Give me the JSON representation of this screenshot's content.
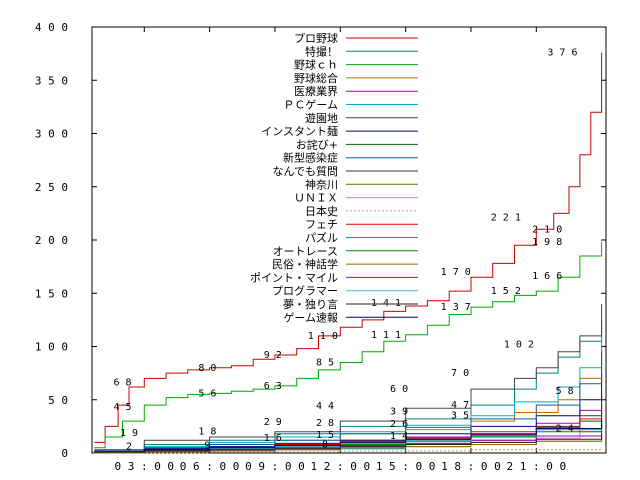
{
  "chart_data": {
    "type": "line",
    "title": "",
    "xlabel": "",
    "ylabel": "",
    "xlim": [
      0.6,
      24.2
    ],
    "ylim": [
      0,
      400
    ],
    "yticks": [
      0,
      50,
      100,
      150,
      200,
      250,
      300,
      350,
      400
    ],
    "ytick_labels": [
      "0",
      "5 0",
      "1 0 0",
      "1 5 0",
      "2 0 0",
      "2 5 0",
      "3 0 0",
      "3 5 0",
      "4 0 0"
    ],
    "xticks": [
      3,
      6,
      9,
      12,
      15,
      18,
      21
    ],
    "xtick_labels": [
      "0 3 : 0 0",
      "0 6 : 0 0",
      "0 9 : 0 0",
      "1 2 : 0 0",
      "1 5 : 0 0",
      "1 8 : 0 0",
      "2 1 : 0 0"
    ],
    "legend_position": "top-center",
    "series": [
      {
        "name": "プロ野球",
        "color": "#cc0000",
        "values": [
          [
            0.7,
            10
          ],
          [
            1.2,
            25
          ],
          [
            1.8,
            45
          ],
          [
            2.3,
            62
          ],
          [
            3,
            70
          ],
          [
            4,
            75
          ],
          [
            5,
            78
          ],
          [
            6,
            80
          ],
          [
            7,
            82
          ],
          [
            8,
            88
          ],
          [
            9,
            92
          ],
          [
            10,
            98
          ],
          [
            11,
            110
          ],
          [
            12,
            118
          ],
          [
            13,
            125
          ],
          [
            14,
            133
          ],
          [
            15,
            138
          ],
          [
            16,
            143
          ],
          [
            17,
            152
          ],
          [
            18,
            165
          ],
          [
            19,
            178
          ],
          [
            20,
            195
          ],
          [
            21,
            210
          ],
          [
            21.8,
            225
          ],
          [
            22.5,
            250
          ],
          [
            23,
            280
          ],
          [
            23.5,
            320
          ],
          [
            24,
            376
          ]
        ]
      },
      {
        "name": "特撮！",
        "color": "#008080",
        "values": [
          [
            0.7,
            2
          ],
          [
            3,
            8
          ],
          [
            6,
            12
          ],
          [
            9,
            18
          ],
          [
            12,
            25
          ],
          [
            15,
            32
          ],
          [
            18,
            45
          ],
          [
            20,
            60
          ],
          [
            21,
            75
          ],
          [
            22,
            90
          ],
          [
            23,
            105
          ],
          [
            24,
            125
          ]
        ]
      },
      {
        "name": "野球ｃｈ",
        "color": "#00aa00",
        "values": [
          [
            0.7,
            5
          ],
          [
            1.2,
            15
          ],
          [
            2,
            30
          ],
          [
            3,
            45
          ],
          [
            4,
            52
          ],
          [
            5,
            55
          ],
          [
            6,
            56
          ],
          [
            7,
            58
          ],
          [
            8,
            60
          ],
          [
            9,
            63
          ],
          [
            10,
            70
          ],
          [
            11,
            78
          ],
          [
            12,
            85
          ],
          [
            13,
            95
          ],
          [
            14,
            105
          ],
          [
            15,
            111
          ],
          [
            16,
            120
          ],
          [
            17,
            130
          ],
          [
            18,
            137
          ],
          [
            19,
            142
          ],
          [
            20,
            148
          ],
          [
            21,
            152
          ],
          [
            22,
            165
          ],
          [
            23,
            185
          ],
          [
            24,
            198
          ]
        ]
      },
      {
        "name": "野球総合",
        "color": "#cc6600",
        "values": [
          [
            0.7,
            1
          ],
          [
            3,
            5
          ],
          [
            6,
            8
          ],
          [
            9,
            12
          ],
          [
            12,
            18
          ],
          [
            15,
            22
          ],
          [
            18,
            30
          ],
          [
            20,
            38
          ],
          [
            22,
            50
          ],
          [
            23,
            70
          ],
          [
            24,
            100
          ]
        ]
      },
      {
        "name": "医療業界",
        "color": "#aa00aa",
        "values": [
          [
            0.7,
            1
          ],
          [
            3,
            3
          ],
          [
            6,
            5
          ],
          [
            9,
            8
          ],
          [
            12,
            12
          ],
          [
            15,
            15
          ],
          [
            18,
            20
          ],
          [
            21,
            28
          ],
          [
            23,
            40
          ],
          [
            24,
            55
          ]
        ]
      },
      {
        "name": "ＰＣゲーム",
        "color": "#00aacc",
        "values": [
          [
            0.7,
            2
          ],
          [
            3,
            6
          ],
          [
            6,
            10
          ],
          [
            9,
            15
          ],
          [
            12,
            20
          ],
          [
            15,
            26
          ],
          [
            18,
            35
          ],
          [
            20,
            48
          ],
          [
            22,
            62
          ],
          [
            23,
            80
          ],
          [
            24,
            110
          ]
        ]
      },
      {
        "name": "遊園地",
        "color": "#444444",
        "values": [
          [
            0.7,
            3
          ],
          [
            3,
            12
          ],
          [
            6,
            15
          ],
          [
            9,
            20
          ],
          [
            12,
            30
          ],
          [
            15,
            42
          ],
          [
            18,
            60
          ],
          [
            20,
            70
          ],
          [
            21,
            80
          ],
          [
            22,
            95
          ],
          [
            23,
            110
          ],
          [
            24,
            140
          ]
        ]
      },
      {
        "name": "インスタント麺",
        "color": "#000088",
        "values": [
          [
            0.7,
            1
          ],
          [
            3,
            4
          ],
          [
            6,
            6
          ],
          [
            9,
            9
          ],
          [
            12,
            12
          ],
          [
            15,
            18
          ],
          [
            18,
            25
          ],
          [
            21,
            35
          ],
          [
            23,
            50
          ],
          [
            24,
            75
          ]
        ]
      },
      {
        "name": "お詫び+",
        "color": "#006600",
        "values": [
          [
            0.7,
            1
          ],
          [
            3,
            2
          ],
          [
            6,
            4
          ],
          [
            9,
            6
          ],
          [
            12,
            9
          ],
          [
            15,
            12
          ],
          [
            18,
            16
          ],
          [
            21,
            22
          ],
          [
            23,
            30
          ],
          [
            24,
            40
          ]
        ]
      },
      {
        "name": "新型感染症",
        "color": "#006699",
        "values": [
          [
            0.7,
            2
          ],
          [
            3,
            5
          ],
          [
            6,
            8
          ],
          [
            9,
            12
          ],
          [
            12,
            18
          ],
          [
            15,
            24
          ],
          [
            18,
            32
          ],
          [
            21,
            45
          ],
          [
            23,
            65
          ],
          [
            24,
            95
          ]
        ]
      },
      {
        "name": "なんでも質問",
        "color": "#333333",
        "values": [
          [
            0.7,
            1
          ],
          [
            3,
            3
          ],
          [
            6,
            5
          ],
          [
            9,
            7
          ],
          [
            12,
            10
          ],
          [
            15,
            13
          ],
          [
            18,
            18
          ],
          [
            21,
            25
          ],
          [
            23,
            35
          ],
          [
            24,
            50
          ]
        ]
      },
      {
        "name": "神奈川",
        "color": "#666600",
        "values": [
          [
            0.7,
            1
          ],
          [
            3,
            2
          ],
          [
            6,
            3
          ],
          [
            9,
            5
          ],
          [
            12,
            7
          ],
          [
            15,
            9
          ],
          [
            18,
            12
          ],
          [
            21,
            16
          ],
          [
            23,
            22
          ],
          [
            24,
            30
          ]
        ]
      },
      {
        "name": "ＵＮＩＸ",
        "color": "#ff66ff",
        "values": [
          [
            0.7,
            1
          ],
          [
            3,
            2
          ],
          [
            6,
            3
          ],
          [
            9,
            4
          ],
          [
            12,
            6
          ],
          [
            15,
            8
          ],
          [
            18,
            10
          ],
          [
            21,
            14
          ],
          [
            23,
            20
          ],
          [
            24,
            28
          ]
        ]
      },
      {
        "name": "日本史",
        "color": "#cc9966",
        "dashed": true,
        "values": [
          [
            0.7,
            0
          ],
          [
            6,
            1
          ],
          [
            12,
            2
          ],
          [
            18,
            3
          ],
          [
            24,
            5
          ]
        ]
      },
      {
        "name": "フェチ",
        "color": "#dd0000",
        "values": [
          [
            0.7,
            1
          ],
          [
            3,
            3
          ],
          [
            6,
            5
          ],
          [
            9,
            8
          ],
          [
            12,
            11
          ],
          [
            15,
            14
          ],
          [
            18,
            18
          ],
          [
            21,
            24
          ],
          [
            23,
            32
          ],
          [
            24,
            44
          ]
        ]
      },
      {
        "name": "パズル",
        "color": "#009999",
        "values": [
          [
            0.7,
            0
          ],
          [
            3,
            1
          ],
          [
            6,
            2
          ],
          [
            9,
            3
          ],
          [
            12,
            4
          ],
          [
            15,
            6
          ],
          [
            18,
            8
          ],
          [
            21,
            11
          ],
          [
            24,
            16
          ]
        ]
      },
      {
        "name": "オートレース",
        "color": "#008800",
        "values": [
          [
            0.7,
            1
          ],
          [
            3,
            2
          ],
          [
            6,
            4
          ],
          [
            9,
            6
          ],
          [
            12,
            8
          ],
          [
            15,
            11
          ],
          [
            18,
            15
          ],
          [
            21,
            20
          ],
          [
            24,
            28
          ]
        ]
      },
      {
        "name": "民俗・神話学",
        "color": "#996600",
        "values": [
          [
            0.7,
            0
          ],
          [
            3,
            1
          ],
          [
            6,
            2
          ],
          [
            9,
            3
          ],
          [
            12,
            5
          ],
          [
            15,
            6
          ],
          [
            18,
            8
          ],
          [
            21,
            11
          ],
          [
            24,
            15
          ]
        ]
      },
      {
        "name": "ポイント・マイル",
        "color": "#9900cc",
        "values": [
          [
            0.7,
            1
          ],
          [
            3,
            2
          ],
          [
            6,
            3
          ],
          [
            9,
            5
          ],
          [
            12,
            7
          ],
          [
            15,
            9
          ],
          [
            18,
            12
          ],
          [
            21,
            16
          ],
          [
            24,
            22
          ]
        ]
      },
      {
        "name": "プログラマー",
        "color": "#33bbdd",
        "values": [
          [
            0.7,
            1
          ],
          [
            3,
            2
          ],
          [
            6,
            4
          ],
          [
            9,
            6
          ],
          [
            12,
            9
          ],
          [
            15,
            12
          ],
          [
            18,
            16
          ],
          [
            21,
            22
          ],
          [
            24,
            30
          ]
        ]
      },
      {
        "name": "夢・独り言",
        "color": "#222222",
        "values": [
          [
            0.7,
            1
          ],
          [
            3,
            2
          ],
          [
            6,
            3
          ],
          [
            9,
            4
          ],
          [
            12,
            6
          ],
          [
            15,
            8
          ],
          [
            18,
            10
          ],
          [
            21,
            13
          ],
          [
            24,
            18
          ]
        ]
      },
      {
        "name": "ゲーム速報",
        "color": "#000066",
        "values": [
          [
            0.7,
            1
          ],
          [
            3,
            3
          ],
          [
            6,
            5
          ],
          [
            9,
            7
          ],
          [
            12,
            10
          ],
          [
            15,
            13
          ],
          [
            18,
            17
          ],
          [
            21,
            23
          ],
          [
            24,
            32
          ]
        ]
      }
    ],
    "annotations": [
      {
        "text": "3 7 6",
        "x": 22.2,
        "y": 376
      },
      {
        "text": "2 2 1",
        "x": 19.6,
        "y": 221
      },
      {
        "text": "2 1 0",
        "x": 21.5,
        "y": 210
      },
      {
        "text": "1 9 8",
        "x": 21.5,
        "y": 198
      },
      {
        "text": "1 7 0",
        "x": 17.3,
        "y": 170
      },
      {
        "text": "1 6 6",
        "x": 21.5,
        "y": 166
      },
      {
        "text": "1 5 2",
        "x": 19.6,
        "y": 152
      },
      {
        "text": "1 4 1",
        "x": 14.1,
        "y": 141
      },
      {
        "text": "1 3 7",
        "x": 17.3,
        "y": 137
      },
      {
        "text": "1 1 0",
        "x": 11.2,
        "y": 110
      },
      {
        "text": "1 1 1",
        "x": 14.1,
        "y": 111
      },
      {
        "text": "1 0 2",
        "x": 20.2,
        "y": 102
      },
      {
        "text": "9 2",
        "x": 8.9,
        "y": 92
      },
      {
        "text": "8 0",
        "x": 5.9,
        "y": 80
      },
      {
        "text": "8 5",
        "x": 11.3,
        "y": 85
      },
      {
        "text": "7 0",
        "x": 17.5,
        "y": 75
      },
      {
        "text": "6 8",
        "x": 2.0,
        "y": 66
      },
      {
        "text": "6 3",
        "x": 8.9,
        "y": 63
      },
      {
        "text": "6 0",
        "x": 14.7,
        "y": 60
      },
      {
        "text": "5 6",
        "x": 5.9,
        "y": 56
      },
      {
        "text": "5 8",
        "x": 22.3,
        "y": 58
      },
      {
        "text": "4 5",
        "x": 2.0,
        "y": 43
      },
      {
        "text": "4 4",
        "x": 11.3,
        "y": 44
      },
      {
        "text": "4 7",
        "x": 17.5,
        "y": 45
      },
      {
        "text": "3 9",
        "x": 14.7,
        "y": 39
      },
      {
        "text": "3 5",
        "x": 17.5,
        "y": 35
      },
      {
        "text": "2 9",
        "x": 8.9,
        "y": 29
      },
      {
        "text": "2 8",
        "x": 11.3,
        "y": 28
      },
      {
        "text": "2 6",
        "x": 14.7,
        "y": 27
      },
      {
        "text": "2 4",
        "x": 22.3,
        "y": 23
      },
      {
        "text": "1 9",
        "x": 2.3,
        "y": 19
      },
      {
        "text": "1 8",
        "x": 5.9,
        "y": 20
      },
      {
        "text": "1 6",
        "x": 8.9,
        "y": 14
      },
      {
        "text": "1 5",
        "x": 11.3,
        "y": 17
      },
      {
        "text": "1 4",
        "x": 14.7,
        "y": 16
      },
      {
        "text": "9",
        "x": 5.9,
        "y": 7
      },
      {
        "text": "8",
        "x": 11.3,
        "y": 8
      },
      {
        "text": "2",
        "x": 2.3,
        "y": 6
      }
    ]
  }
}
